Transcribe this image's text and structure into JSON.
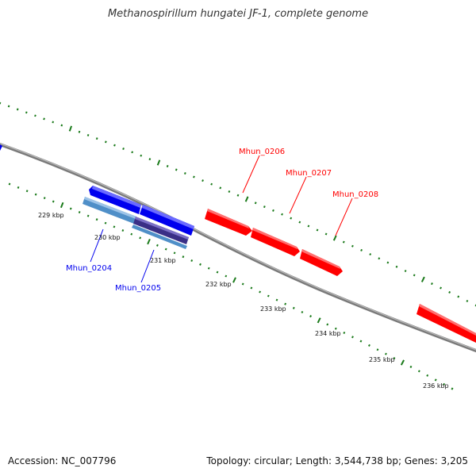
{
  "title": "Methanospirillum hungatei JF-1, complete genome",
  "footer": {
    "accession": "Accession: NC_007796",
    "summary": "Topology: circular; Length: 3,544,738 bp; Genes: 3,205"
  },
  "colors": {
    "forward": "#ff0000",
    "reverse": "#0000ee",
    "reverse_light": "#4f8fc8",
    "reverse_dark": "#3a2f86",
    "ticks": "#1a7a1a",
    "backbone": "#808080"
  },
  "ticks": [
    "229 kbp",
    "230 kbp",
    "231 kbp",
    "232 kbp",
    "233 kbp",
    "234 kbp",
    "235 kbp",
    "236 kbp"
  ],
  "genes_reverse": [
    {
      "label": "Mhun_0204"
    },
    {
      "label": "Mhun_0205"
    }
  ],
  "genes_forward": [
    {
      "label": "Mhun_0206"
    },
    {
      "label": "Mhun_0207"
    },
    {
      "label": "Mhun_0208"
    }
  ]
}
